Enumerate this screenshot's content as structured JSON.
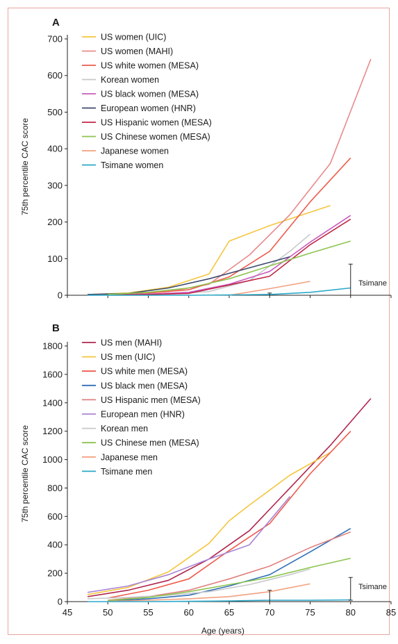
{
  "chart_data": [
    {
      "type": "line",
      "panel_label": "A",
      "ylabel": "75th percentile CAC score",
      "xlim": [
        45,
        85
      ],
      "ylim": [
        0,
        700
      ],
      "yticks": [
        "0",
        "100",
        "200",
        "300",
        "400",
        "500",
        "600",
        "700"
      ],
      "xticks": [],
      "legend_position": "top-left",
      "annotation": "Tsimane",
      "tsimane_range": [
        0,
        85
      ],
      "tsimane_x": 80,
      "series": [
        {
          "name": "US women (UIC)",
          "color": "#f5c53c",
          "x": [
            47.5,
            52.5,
            57.5,
            62.5,
            65,
            70,
            77.5
          ],
          "y": [
            2,
            6,
            22,
            58,
            148,
            190,
            245
          ]
        },
        {
          "name": "US women (MAHI)",
          "color": "#e88a8a",
          "x": [
            47.5,
            52.5,
            57.5,
            62.5,
            67.5,
            72.5,
            77.5,
            82.5
          ],
          "y": [
            2,
            4,
            10,
            30,
            110,
            220,
            360,
            645
          ]
        },
        {
          "name": "US white women (MESA)",
          "color": "#ee5a4a",
          "x": [
            50,
            55,
            60,
            65,
            70,
            75,
            80
          ],
          "y": [
            3,
            6,
            15,
            50,
            120,
            255,
            375
          ]
        },
        {
          "name": "Korean women",
          "color": "#c7c9cc",
          "x": [
            47.5,
            52.5,
            57.5,
            62.5,
            67.5,
            72.5,
            75
          ],
          "y": [
            1,
            2,
            4,
            10,
            40,
            120,
            167
          ]
        },
        {
          "name": "US black women (MESA)",
          "color": "#c75cbd",
          "x": [
            50,
            55,
            60,
            65,
            70,
            75,
            80
          ],
          "y": [
            2,
            3,
            8,
            30,
            65,
            145,
            218
          ]
        },
        {
          "name": "European women (HNR)",
          "color": "#3e4a6e",
          "x": [
            47.5,
            52.5,
            57.5,
            62.5,
            67.5,
            72.5
          ],
          "y": [
            2,
            5,
            20,
            45,
            75,
            105
          ]
        },
        {
          "name": "US Hispanic women (MESA)",
          "color": "#c0274a",
          "x": [
            50,
            55,
            60,
            65,
            70,
            75,
            80
          ],
          "y": [
            1,
            2,
            5,
            28,
            52,
            138,
            208
          ]
        },
        {
          "name": "US Chinese women (MESA)",
          "color": "#8cc44e",
          "x": [
            50,
            55,
            60,
            65,
            70,
            75,
            80
          ],
          "y": [
            2,
            8,
            20,
            45,
            80,
            115,
            148
          ]
        },
        {
          "name": "Japanese women",
          "color": "#f2a07e",
          "x": [
            65,
            70,
            75
          ],
          "y": [
            0,
            18,
            38
          ]
        },
        {
          "name": "Tsimane women",
          "color": "#2aa8c8",
          "x": [
            47.5,
            55,
            60,
            65,
            70,
            75,
            80
          ],
          "y": [
            0,
            0,
            0,
            1,
            2,
            8,
            20
          ]
        }
      ]
    },
    {
      "type": "line",
      "panel_label": "B",
      "ylabel": "75th percentile CAC score",
      "xlabel": "Age (years)",
      "xlim": [
        45,
        85
      ],
      "ylim": [
        0,
        1800
      ],
      "yticks": [
        "0",
        "200",
        "400",
        "600",
        "800",
        "1000",
        "1200",
        "1400",
        "1600",
        "1800"
      ],
      "xticks": [
        "45",
        "50",
        "55",
        "60",
        "65",
        "70",
        "75",
        "80",
        "85"
      ],
      "legend_position": "top-left",
      "annotation": "Tsimane",
      "tsimane_range": [
        10,
        170
      ],
      "tsimane_x": 80,
      "series": [
        {
          "name": "US men (MAHI)",
          "color": "#b0244d",
          "x": [
            47.5,
            52.5,
            57.5,
            62.5,
            67.5,
            72.5,
            77.5,
            82.5
          ],
          "y": [
            35,
            80,
            150,
            300,
            500,
            800,
            1100,
            1430
          ]
        },
        {
          "name": "US men (UIC)",
          "color": "#f5c53c",
          "x": [
            47.5,
            52.5,
            57.5,
            62.5,
            65,
            67.5,
            72.5,
            77.5
          ],
          "y": [
            50,
            100,
            210,
            410,
            570,
            680,
            890,
            1050
          ]
        },
        {
          "name": "US white men (MESA)",
          "color": "#ee5a4a",
          "x": [
            50,
            55,
            60,
            65,
            70,
            75,
            80
          ],
          "y": [
            25,
            80,
            160,
            360,
            550,
            900,
            1200
          ]
        },
        {
          "name": "US black men (MESA)",
          "color": "#2f6fb5",
          "x": [
            50,
            55,
            60,
            65,
            70,
            75,
            80
          ],
          "y": [
            5,
            20,
            45,
            110,
            190,
            350,
            515
          ]
        },
        {
          "name": "US Hispanic men (MESA)",
          "color": "#e08080",
          "x": [
            50,
            55,
            60,
            65,
            70,
            75,
            80
          ],
          "y": [
            10,
            35,
            80,
            160,
            250,
            380,
            490
          ]
        },
        {
          "name": "European men (HNR)",
          "color": "#a884d6",
          "x": [
            47.5,
            52.5,
            57.5,
            62.5,
            67.5,
            72.5
          ],
          "y": [
            65,
            110,
            190,
            300,
            400,
            740
          ]
        },
        {
          "name": "Korean men",
          "color": "#c7c9cc",
          "x": [
            47.5,
            52.5,
            57.5,
            62.5,
            67.5,
            72.5,
            75
          ],
          "y": [
            20,
            30,
            45,
            70,
            120,
            190,
            230
          ]
        },
        {
          "name": "US Chinese men (MESA)",
          "color": "#8cc44e",
          "x": [
            50,
            55,
            60,
            65,
            70,
            75,
            80
          ],
          "y": [
            8,
            30,
            70,
            120,
            170,
            240,
            305
          ]
        },
        {
          "name": "Japanese men",
          "color": "#f2a07e",
          "x": [
            50,
            55,
            60,
            65,
            70,
            75
          ],
          "y": [
            2,
            10,
            20,
            35,
            70,
            125
          ]
        },
        {
          "name": "Tsimane men",
          "color": "#2aa8c8",
          "x": [
            47.5,
            55,
            60,
            65,
            70,
            75,
            80
          ],
          "y": [
            0,
            0,
            2,
            5,
            10,
            10,
            12
          ]
        }
      ]
    }
  ]
}
